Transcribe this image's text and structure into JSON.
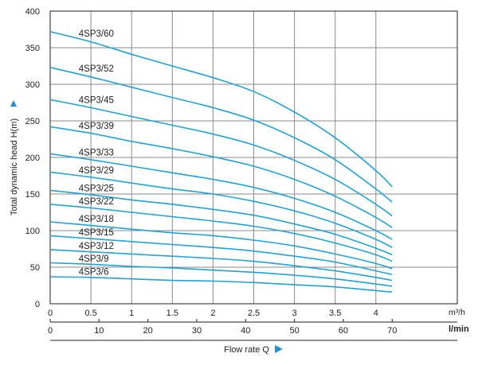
{
  "chart_data": {
    "type": "line",
    "title": "",
    "ylabel": "Total dynamic head H(m)",
    "xlabel": "Flow rate Q",
    "x_unit_top": "m³/h",
    "x_unit_bottom": "l/min",
    "ylim": [
      0,
      400
    ],
    "y_ticks": [
      "0",
      "50",
      "100",
      "150",
      "200",
      "250",
      "300",
      "350",
      "400"
    ],
    "xlim": [
      0,
      5
    ],
    "x_ticks_m3h": [
      "0",
      "0.5",
      "1",
      "1.5",
      "2",
      "2.5",
      "3",
      "3.5",
      "4"
    ],
    "x_ticks_lmin": [
      "0",
      "10",
      "20",
      "30",
      "40",
      "50",
      "60",
      "70"
    ],
    "grid": true,
    "x_m3h": [
      0,
      0.5,
      1,
      1.5,
      2,
      2.5,
      3,
      3.5,
      4,
      4.2
    ],
    "series": [
      {
        "name": "4SP3/60",
        "values": [
          372,
          358,
          341,
          325,
          309,
          290,
          262,
          227,
          182,
          160
        ]
      },
      {
        "name": "4SP3/52",
        "values": [
          323,
          310,
          296,
          282,
          268,
          251,
          227,
          197,
          157,
          139
        ]
      },
      {
        "name": "4SP3/45",
        "values": [
          279,
          268,
          256,
          244,
          232,
          217,
          196,
          170,
          136,
          120
        ]
      },
      {
        "name": "4SP3/39",
        "values": [
          242,
          233,
          222,
          212,
          201,
          188,
          170,
          147,
          118,
          104
        ]
      },
      {
        "name": "4SP3/33",
        "values": [
          205,
          197,
          188,
          179,
          170,
          159,
          144,
          125,
          100,
          88
        ]
      },
      {
        "name": "4SP3/29",
        "values": [
          180,
          173,
          165,
          157,
          150,
          140,
          127,
          110,
          88,
          77
        ]
      },
      {
        "name": "4SP3/25",
        "values": [
          155,
          149,
          142,
          136,
          129,
          121,
          109,
          95,
          76,
          67
        ]
      },
      {
        "name": "4SP3/22",
        "values": [
          136,
          131,
          125,
          119,
          113,
          106,
          96,
          83,
          67,
          58
        ]
      },
      {
        "name": "4SP3/18",
        "values": [
          112,
          107,
          102,
          97,
          93,
          87,
          79,
          68,
          55,
          48
        ]
      },
      {
        "name": "4SP3/15",
        "values": [
          93,
          89,
          85,
          81,
          77,
          72,
          65,
          57,
          45,
          40
        ]
      },
      {
        "name": "4SP3/12",
        "values": [
          74,
          71,
          68,
          65,
          62,
          58,
          52,
          45,
          36,
          32
        ]
      },
      {
        "name": "4SP3/9",
        "values": [
          56,
          54,
          51,
          49,
          46,
          43,
          39,
          34,
          27,
          24
        ]
      },
      {
        "name": "4SP3/6",
        "values": [
          37,
          36,
          34,
          32,
          31,
          29,
          26,
          23,
          18,
          16
        ]
      }
    ],
    "line_color": "#1fa3d6",
    "accent_color": "#1f8fd6"
  }
}
